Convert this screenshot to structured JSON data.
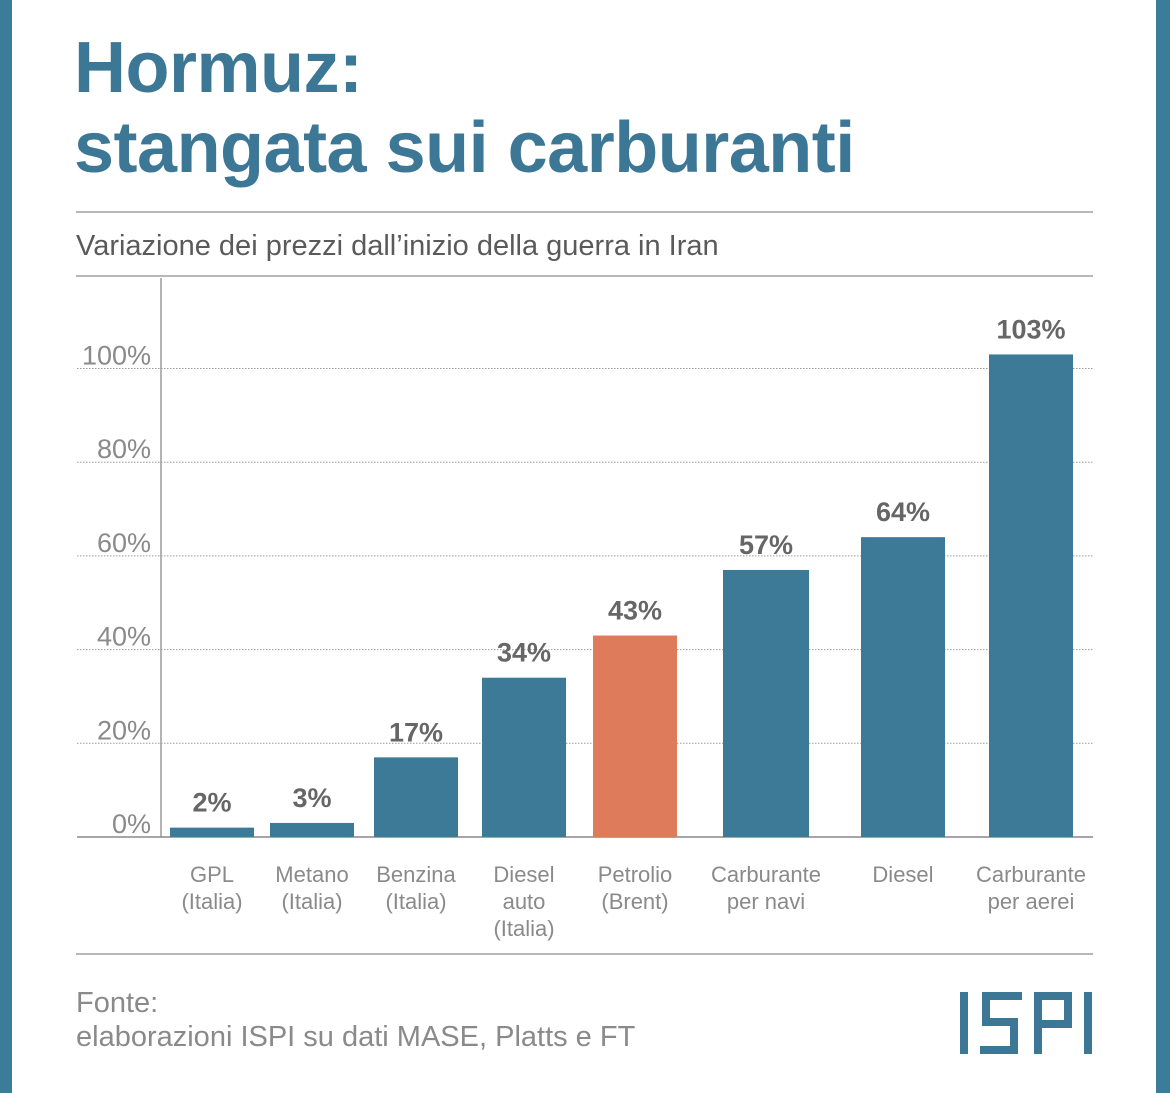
{
  "title": {
    "line1": "Hormuz:",
    "line2": "stangata sui carburanti"
  },
  "subtitle": "Variazione dei prezzi dall’inizio della guerra in Iran",
  "source": {
    "line1": "Fonte:",
    "line2": "elaborazioni ISPI su dati MASE, Platts e FT"
  },
  "logo": "ISPI",
  "colors": {
    "accent": "#3d7796",
    "bar": "#3c7a98",
    "highlight": "#de7b5a",
    "background": "#3b7c99"
  },
  "chart_data": {
    "type": "bar",
    "categories": [
      [
        "GPL",
        "(Italia)"
      ],
      [
        "Metano",
        "(Italia)"
      ],
      [
        "Benzina",
        "(Italia)"
      ],
      [
        "Diesel",
        "auto",
        "(Italia)"
      ],
      [
        "Petrolio",
        "(Brent)"
      ],
      [
        "Carburante",
        "per navi"
      ],
      [
        "Diesel"
      ],
      [
        "Carburante",
        "per aerei"
      ]
    ],
    "values": [
      2,
      3,
      17,
      34,
      43,
      57,
      64,
      103
    ],
    "value_labels": [
      "2%",
      "3%",
      "17%",
      "34%",
      "43%",
      "57%",
      "64%",
      "103%"
    ],
    "highlight_index": 4,
    "yticks": [
      0,
      20,
      40,
      60,
      80,
      100
    ],
    "ytick_labels": [
      "0%",
      "20%",
      "40%",
      "60%",
      "80%",
      "100%"
    ],
    "ylim": [
      0,
      110
    ],
    "grid": true,
    "xlabel": "",
    "ylabel": ""
  }
}
